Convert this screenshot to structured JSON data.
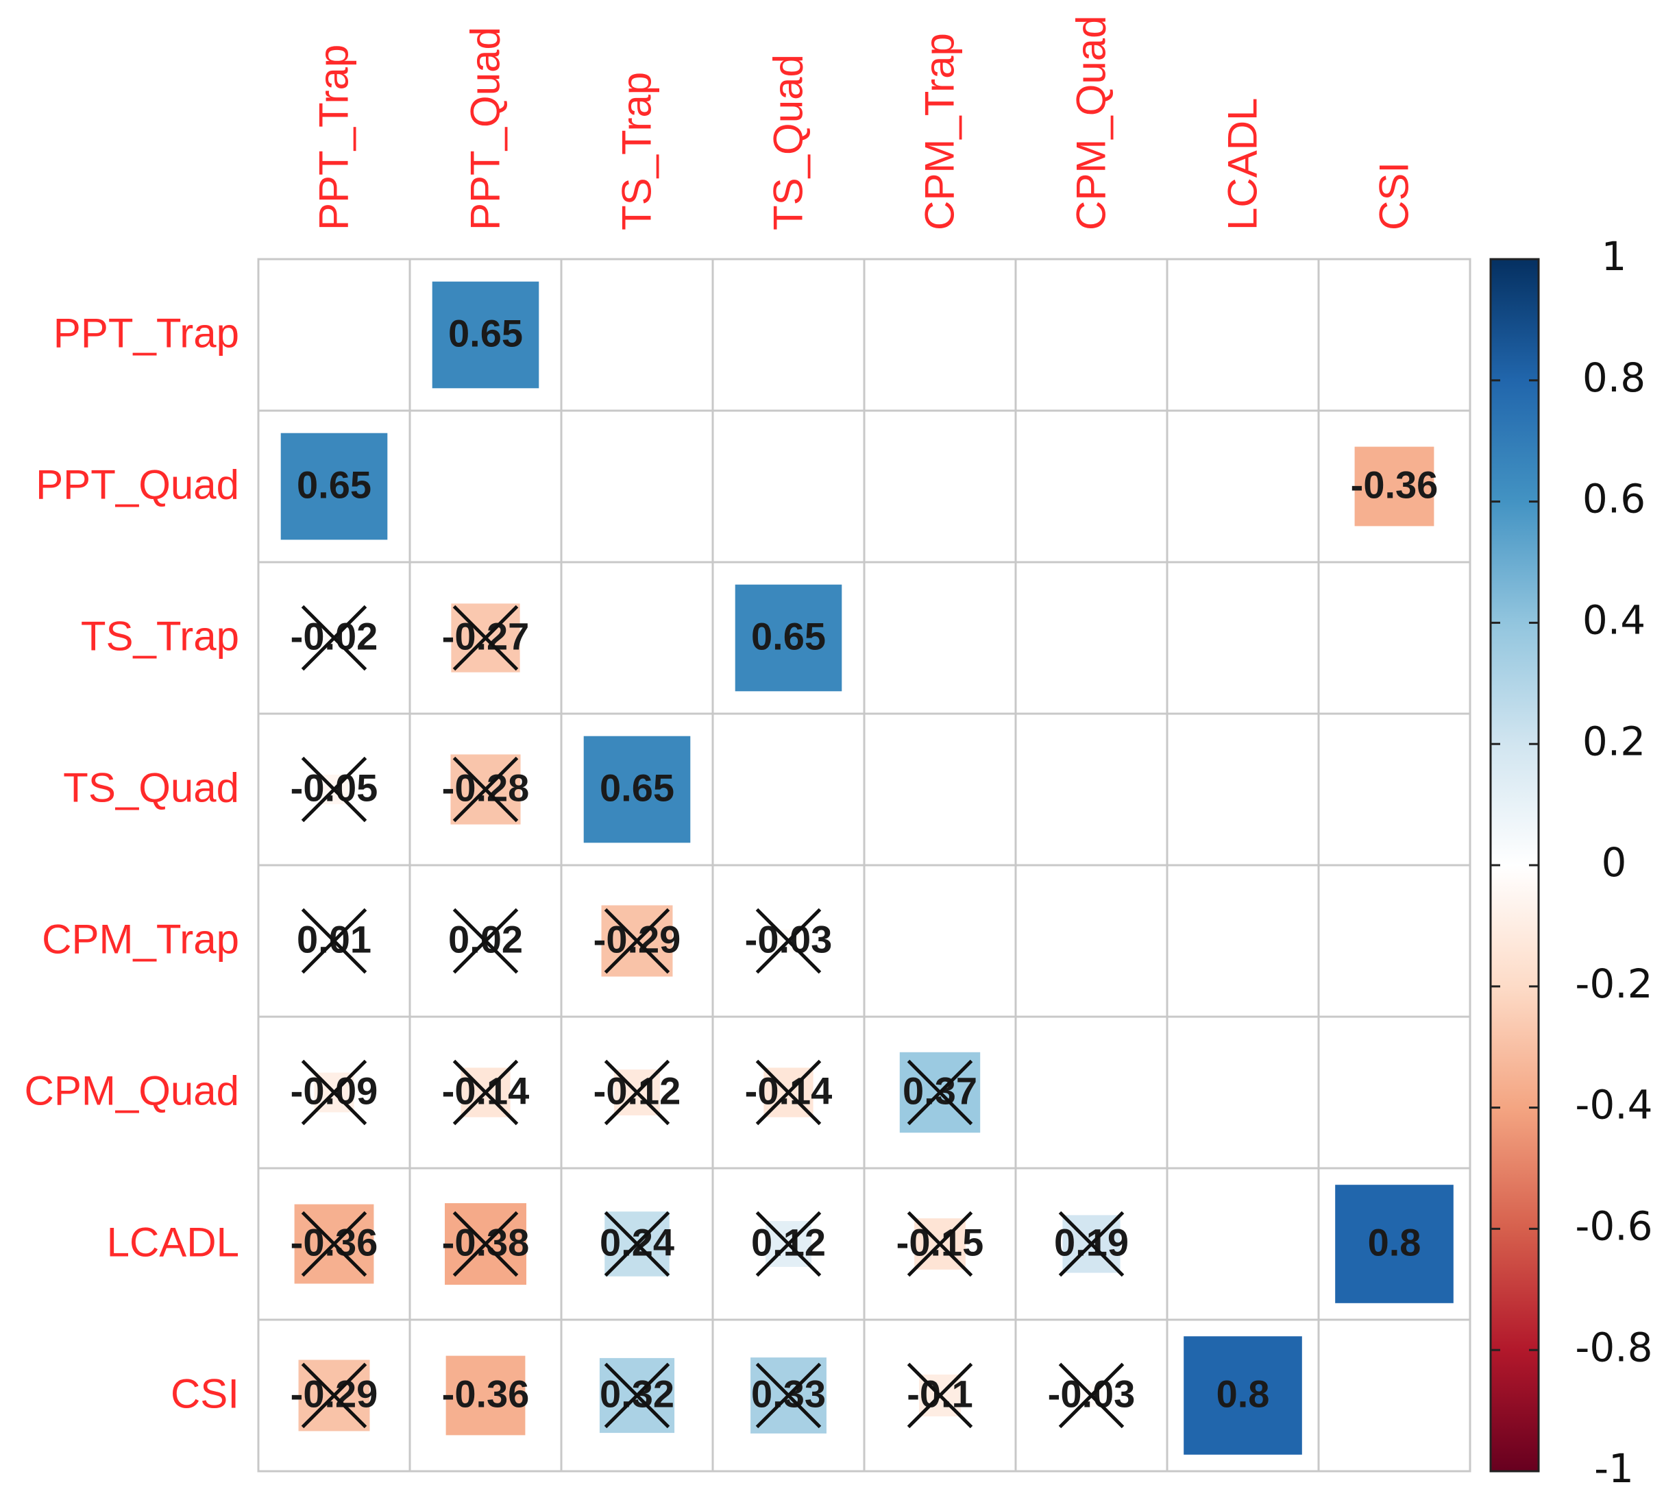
{
  "chart_data": {
    "type": "heatmap",
    "title": "",
    "variables": [
      "PPT_Trap",
      "PPT_Quad",
      "TS_Trap",
      "TS_Quad",
      "CPM_Trap",
      "CPM_Quad",
      "LCADL",
      "CSI"
    ],
    "row_labels": [
      "PPT_Trap",
      "PPT_Quad",
      "TS_Trap",
      "TS_Quad",
      "CPM_Trap",
      "CPM_Quad",
      "LCADL",
      "CSI"
    ],
    "col_labels": [
      "PPT_Trap",
      "PPT_Quad",
      "TS_Trap",
      "TS_Quad",
      "CPM_Trap",
      "CPM_Quad",
      "LCADL",
      "CSI"
    ],
    "matrix": [
      [
        null,
        0.65,
        null,
        null,
        null,
        null,
        null,
        null
      ],
      [
        0.65,
        null,
        null,
        null,
        null,
        null,
        null,
        -0.36
      ],
      [
        -0.02,
        -0.27,
        null,
        0.65,
        null,
        null,
        null,
        null
      ],
      [
        -0.05,
        -0.28,
        0.65,
        null,
        null,
        null,
        null,
        null
      ],
      [
        0.01,
        0.02,
        -0.29,
        -0.03,
        null,
        null,
        null,
        null
      ],
      [
        -0.09,
        -0.14,
        -0.12,
        -0.14,
        0.37,
        null,
        null,
        null
      ],
      [
        -0.36,
        -0.38,
        0.24,
        0.12,
        -0.15,
        0.19,
        null,
        0.8
      ],
      [
        -0.29,
        -0.36,
        0.32,
        0.33,
        -0.1,
        -0.03,
        0.8,
        null
      ]
    ],
    "labels": [
      [
        null,
        "0.65",
        null,
        null,
        null,
        null,
        null,
        null
      ],
      [
        "0.65",
        null,
        null,
        null,
        null,
        null,
        null,
        "-0.36"
      ],
      [
        "-0.02",
        "-0.27",
        null,
        "0.65",
        null,
        null,
        null,
        null
      ],
      [
        "-0.05",
        "-0.28",
        "0.65",
        null,
        null,
        null,
        null,
        null
      ],
      [
        "0.01",
        "0.02",
        "-0.29",
        "-0.03",
        null,
        null,
        null,
        null
      ],
      [
        "-0.09",
        "-0.14",
        "-0.12",
        "-0.14",
        "0.37",
        null,
        null,
        null
      ],
      [
        "-0.36",
        "-0.38",
        "0.24",
        "0.12",
        "-0.15",
        "0.19",
        null,
        "0.8"
      ],
      [
        "-0.29",
        "-0.36",
        "0.32",
        "0.33",
        "-0.1",
        "-0.03",
        "0.8",
        null
      ]
    ],
    "non_significant": [
      [
        false,
        false,
        false,
        false,
        false,
        false,
        false,
        false
      ],
      [
        false,
        false,
        false,
        false,
        false,
        false,
        false,
        false
      ],
      [
        true,
        true,
        false,
        false,
        false,
        false,
        false,
        false
      ],
      [
        true,
        true,
        false,
        false,
        false,
        false,
        false,
        false
      ],
      [
        true,
        true,
        true,
        true,
        false,
        false,
        false,
        false
      ],
      [
        true,
        true,
        true,
        true,
        true,
        false,
        false,
        false
      ],
      [
        true,
        true,
        true,
        true,
        true,
        true,
        false,
        false
      ],
      [
        true,
        false,
        true,
        true,
        true,
        true,
        false,
        false
      ]
    ],
    "color_scale": {
      "range": [
        -1,
        1
      ],
      "ticks": [
        "1",
        "0.8",
        "0.6",
        "0.4",
        "0.2",
        "0",
        "-0.2",
        "-0.4",
        "-0.6",
        "-0.8",
        "-1"
      ],
      "tick_values": [
        1,
        0.8,
        0.6,
        0.4,
        0.2,
        0,
        -0.2,
        -0.4,
        -0.6,
        -0.8,
        -1
      ],
      "colors": [
        "#67001f",
        "#b2182b",
        "#d6604d",
        "#f4a582",
        "#fddbc7",
        "#ffffff",
        "#d1e5f0",
        "#92c5de",
        "#4393c3",
        "#2166ac",
        "#053061"
      ]
    },
    "label_color": "#ff2a2a",
    "grid_color": "#c8c8c8",
    "cross_color": "#111111"
  }
}
